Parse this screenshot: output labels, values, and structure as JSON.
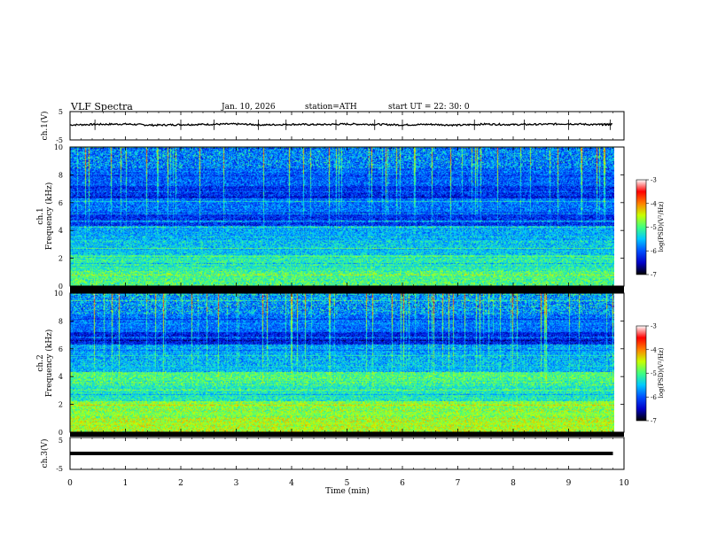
{
  "header": {
    "title": "VLF  Spectra",
    "date": "Jan. 10, 2026",
    "station": "station=ATH",
    "start_ut": "start  UT  =   22: 30: 0"
  },
  "x_axis": {
    "label": "Time  (min)",
    "range": [
      0,
      10
    ],
    "ticks": [
      "0",
      "1",
      "2",
      "3",
      "4",
      "5",
      "6",
      "7",
      "8",
      "9",
      "10"
    ]
  },
  "chart_data": [
    {
      "type": "line",
      "ylabel": "ch.1(V)",
      "ylim": [
        -5,
        5
      ],
      "yticks": [
        "5",
        "-5"
      ],
      "note": "waveform ~constant near 0.5 V with small fluctuation",
      "x": [
        0.0,
        0.5,
        1.0,
        1.5,
        2.0,
        2.5,
        3.0,
        3.5,
        4.0,
        4.5,
        5.0,
        5.5,
        6.0,
        6.5,
        7.0,
        7.5,
        8.0,
        8.5,
        9.0,
        9.5,
        9.8
      ],
      "values": [
        0.3,
        0.5,
        0.6,
        0.2,
        0.4,
        0.5,
        0.6,
        0.3,
        0.5,
        0.4,
        0.6,
        0.5,
        0.3,
        0.5,
        0.2,
        0.6,
        0.4,
        0.5,
        0.7,
        0.4,
        0.5
      ]
    },
    {
      "type": "heatmap",
      "ylabel_line1": "ch.1",
      "ylabel_line2": "Frequency (kHz)",
      "ylim": [
        0,
        10
      ],
      "yticks": [
        "0",
        "2",
        "4",
        "6",
        "8",
        "10"
      ],
      "colorbar_label": "log(PSD)(V²/Hz)",
      "colorbar_ticks": [
        "-3",
        "-4",
        "-5",
        "-6",
        "-7"
      ],
      "colorbar_range": [
        -7,
        -3
      ]
    },
    {
      "type": "heatmap",
      "ylabel_line1": "ch.2",
      "ylabel_line2": "Frequency (kHz)",
      "ylim": [
        0,
        10
      ],
      "yticks": [
        "0",
        "2",
        "4",
        "6",
        "8",
        "10"
      ],
      "colorbar_label": "log(PSD)(V²/Hz)",
      "colorbar_ticks": [
        "-3",
        "-4",
        "-5",
        "-6",
        "-7"
      ],
      "colorbar_range": [
        -7,
        -3
      ]
    },
    {
      "type": "line",
      "ylabel": "ch.3(V)",
      "ylim": [
        -5,
        5
      ],
      "yticks": [
        "5",
        "-5"
      ],
      "note": "flat thick trace near 0 V",
      "x": [
        0,
        9.8
      ],
      "values": [
        0,
        0
      ]
    }
  ],
  "colors": {
    "colormap": [
      "#000000",
      "#0000c8",
      "#0050ff",
      "#00c8ff",
      "#40ff80",
      "#c8ff00",
      "#ff8000",
      "#ff0000",
      "#ffffff"
    ]
  }
}
